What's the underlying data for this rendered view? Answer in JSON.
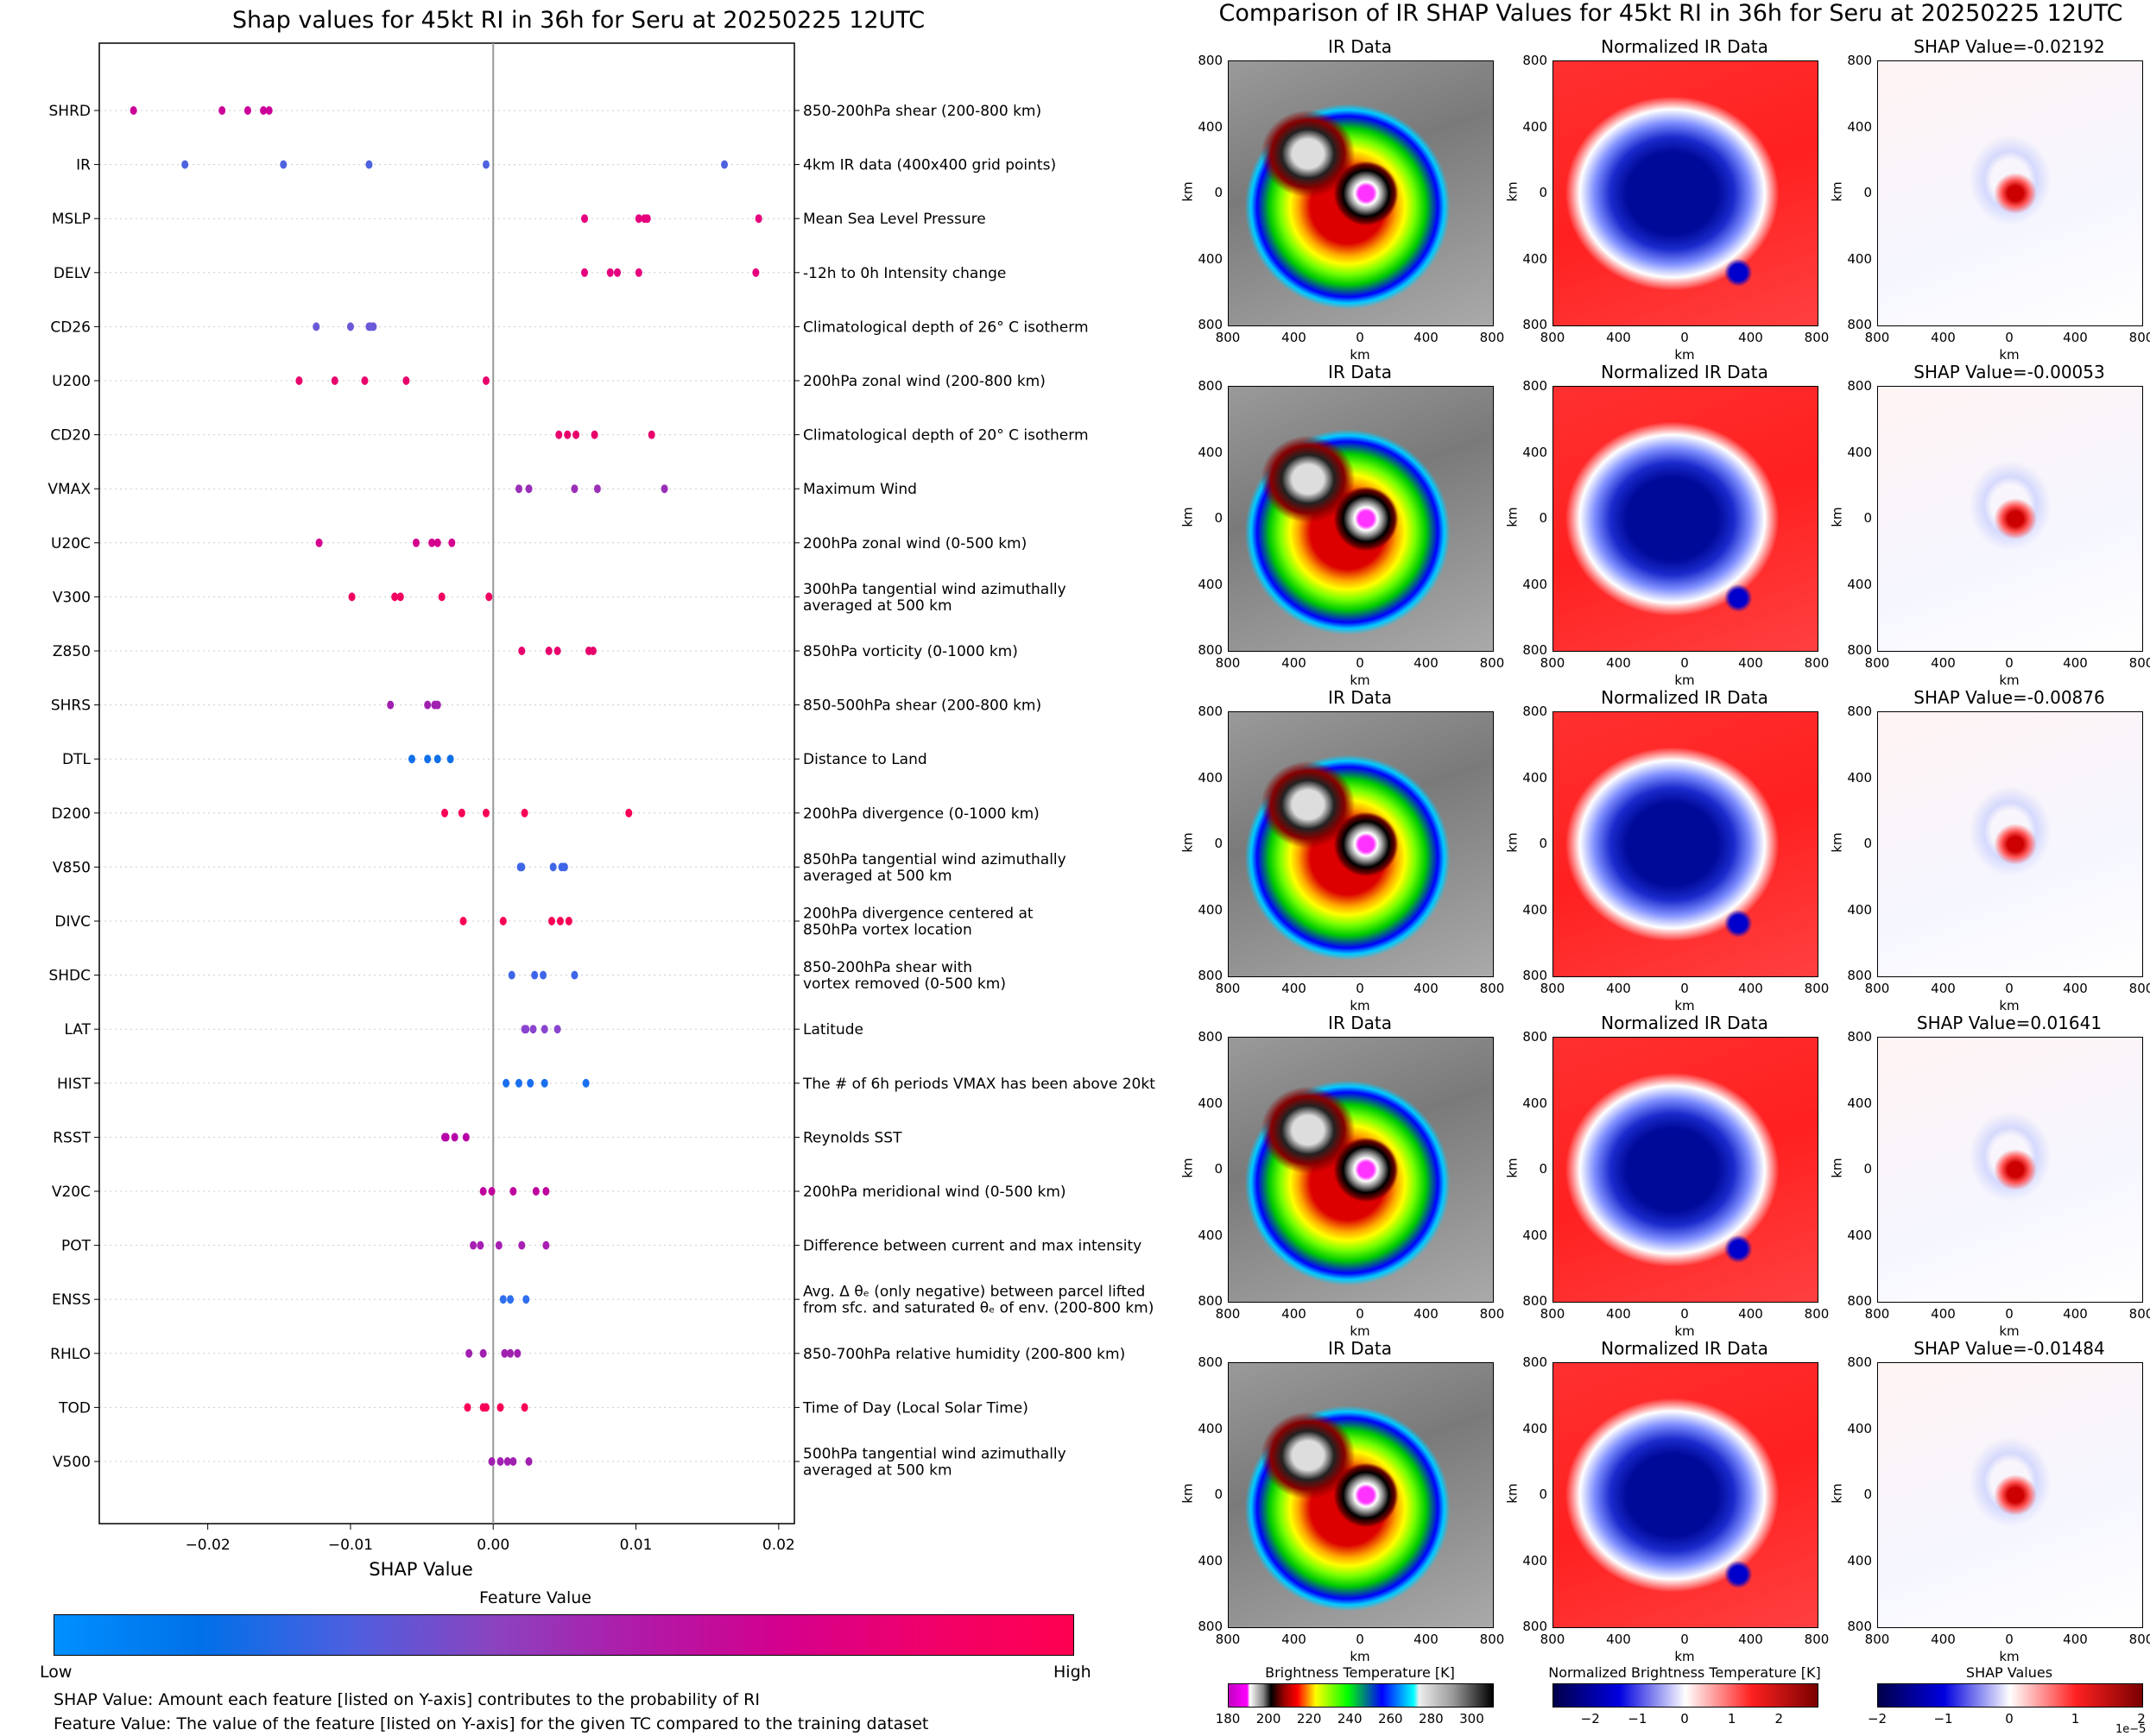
{
  "chart_data": [
    {
      "type": "scatter",
      "title": "Shap values for 45kt RI in 36h for Seru at 20250225 12UTC",
      "xlabel": "SHAP Value",
      "ylabel": "",
      "xlim": [
        -0.0276,
        0.0211
      ],
      "xticks": [
        -0.02,
        -0.01,
        0.0,
        0.01,
        0.02
      ],
      "xtick_labels": [
        "−0.02",
        "−0.01",
        "0.00",
        "0.01",
        "0.02"
      ],
      "grid": "horizontal dotted",
      "zero_line": 0.0,
      "features": [
        {
          "code": "SHRD",
          "desc": [
            "850-200hPa shear (200-800 km)"
          ],
          "color": "#cc0099",
          "values": [
            -0.0252,
            -0.019,
            -0.0172,
            -0.0161,
            -0.0157
          ]
        },
        {
          "code": "IR",
          "desc": [
            "4km IR data (400x400 grid points)"
          ],
          "color": "#4f63e0",
          "values": [
            -0.0216,
            -0.0147,
            -0.0087,
            -0.0005,
            0.0162
          ]
        },
        {
          "code": "MSLP",
          "desc": [
            "Mean Sea Level Pressure"
          ],
          "color": "#e6007e",
          "values": [
            0.0064,
            0.0102,
            0.0106,
            0.0108,
            0.0186
          ]
        },
        {
          "code": "DELV",
          "desc": [
            "-12h to 0h Intensity change"
          ],
          "color": "#e6007e",
          "values": [
            0.0064,
            0.0082,
            0.0087,
            0.0102,
            0.0184
          ]
        },
        {
          "code": "CD26",
          "desc": [
            "Climatological depth of 26° C isotherm"
          ],
          "color": "#6a5ad8",
          "values": [
            -0.0124,
            -0.01,
            -0.0087,
            -0.0086,
            -0.0084
          ]
        },
        {
          "code": "U200",
          "desc": [
            "200hPa zonal wind (200-800 km)"
          ],
          "color": "#e8006c",
          "values": [
            -0.0136,
            -0.0111,
            -0.009,
            -0.0061,
            -0.0005
          ]
        },
        {
          "code": "CD20",
          "desc": [
            "Climatological depth of 20° C isotherm"
          ],
          "color": "#e8006c",
          "values": [
            0.0046,
            0.0052,
            0.0058,
            0.0071,
            0.0111
          ]
        },
        {
          "code": "VMAX",
          "desc": [
            "Maximum Wind"
          ],
          "color": "#9a2fb8",
          "values": [
            0.0018,
            0.0025,
            0.0057,
            0.0073,
            0.012
          ]
        },
        {
          "code": "U20C",
          "desc": [
            "200hPa zonal wind (0-500 km)"
          ],
          "color": "#d4008e",
          "values": [
            -0.0122,
            -0.0054,
            -0.0043,
            -0.0039,
            -0.0029
          ]
        },
        {
          "code": "V300",
          "desc": [
            "300hPa tangential wind azimuthally",
            "averaged at 500 km"
          ],
          "color": "#f00060",
          "values": [
            -0.0099,
            -0.0069,
            -0.0065,
            -0.0036,
            -0.0003
          ]
        },
        {
          "code": "Z850",
          "desc": [
            "850hPa vorticity (0-1000 km)"
          ],
          "color": "#e8006c",
          "values": [
            0.002,
            0.0039,
            0.0045,
            0.0067,
            0.007
          ]
        },
        {
          "code": "SHRS",
          "desc": [
            "850-500hPa shear (200-800 km)"
          ],
          "color": "#a020b0",
          "values": [
            -0.0072,
            -0.0046,
            -0.0041,
            -0.0039
          ]
        },
        {
          "code": "DTL",
          "desc": [
            "Distance to Land"
          ],
          "color": "#1070e8",
          "values": [
            -0.0057,
            -0.0046,
            -0.0039,
            -0.003
          ]
        },
        {
          "code": "D200",
          "desc": [
            "200hPa divergence (0-1000 km)"
          ],
          "color": "#f80058",
          "values": [
            -0.0034,
            -0.0022,
            -0.0005,
            0.0022,
            0.0095
          ]
        },
        {
          "code": "V850",
          "desc": [
            "850hPa tangential wind azimuthally",
            "averaged at 500 km"
          ],
          "color": "#3f66e8",
          "values": [
            0.0019,
            0.002,
            0.0042,
            0.0048,
            0.005
          ]
        },
        {
          "code": "DIVC",
          "desc": [
            "200hPa divergence centered at",
            "850hPa vortex location"
          ],
          "color": "#f80058",
          "values": [
            -0.0021,
            0.0007,
            0.0041,
            0.0047,
            0.0053
          ]
        },
        {
          "code": "SHDC",
          "desc": [
            "850-200hPa shear with",
            "vortex removed (0-500 km)"
          ],
          "color": "#3f66e8",
          "values": [
            0.0013,
            0.0029,
            0.0035,
            0.0057
          ]
        },
        {
          "code": "LAT",
          "desc": [
            "Latitude"
          ],
          "color": "#8a44d0",
          "values": [
            0.0022,
            0.0023,
            0.0028,
            0.0036,
            0.0045
          ]
        },
        {
          "code": "HIST",
          "desc": [
            "The # of 6h periods VMAX has been above 20kt"
          ],
          "color": "#1a6ff0",
          "values": [
            0.0009,
            0.0018,
            0.0026,
            0.0036,
            0.0065
          ]
        },
        {
          "code": "RSST",
          "desc": [
            "Reynolds SST"
          ],
          "color": "#b800a8",
          "values": [
            -0.0034,
            -0.0033,
            -0.0027,
            -0.0019
          ]
        },
        {
          "code": "V20C",
          "desc": [
            "200hPa meridional wind (0-500 km)"
          ],
          "color": "#c0009e",
          "values": [
            -0.0007,
            -0.0001,
            0.0014,
            0.003,
            0.0037
          ]
        },
        {
          "code": "POT",
          "desc": [
            "Difference between current and max intensity"
          ],
          "color": "#a81fb4",
          "values": [
            -0.0014,
            -0.0009,
            0.0004,
            0.002,
            0.0037
          ]
        },
        {
          "code": "ENSS",
          "desc": [
            "Avg. Δ θₑ (only negative) between parcel lifted",
            "from sfc. and saturated θₑ of env. (200-800 km)"
          ],
          "color": "#2f6ff0",
          "values": [
            0.0007,
            0.0012,
            0.0023
          ]
        },
        {
          "code": "RHLO",
          "desc": [
            "850-700hPa relative humidity (200-800 km)"
          ],
          "color": "#a020b0",
          "values": [
            -0.0017,
            -0.0007,
            0.0008,
            0.0012,
            0.0017
          ]
        },
        {
          "code": "TOD",
          "desc": [
            "Time of Day (Local Solar Time)"
          ],
          "color": "#f80058",
          "values": [
            -0.0018,
            -0.0007,
            -0.0005,
            0.0005,
            0.0022
          ]
        },
        {
          "code": "V500",
          "desc": [
            "500hPa tangential wind azimuthally",
            "averaged at 500 km"
          ],
          "color": "#a020b0",
          "values": [
            -0.0001,
            0.0005,
            0.001,
            0.0014,
            0.0025
          ]
        }
      ],
      "colorbar": {
        "title": "Feature Value",
        "low_label": "Low",
        "high_label": "High",
        "colors": [
          "#0090ff",
          "#0070e8",
          "#4a60e0",
          "#8a44c0",
          "#b01aa8",
          "#d4008e",
          "#f0006a",
          "#ff0050"
        ]
      }
    },
    {
      "type": "heatmap",
      "title": "Comparison of IR SHAP Values for 45kt RI in 36h for Seru at 20250225 12UTC",
      "panel_titles": [
        "IR Data",
        "Normalized IR Data"
      ],
      "xlabel": "km",
      "ylabel": "km",
      "xticks": [
        "800",
        "400",
        "0",
        "400",
        "800"
      ],
      "yticks": [
        "800",
        "400",
        "0",
        "400",
        "800"
      ],
      "rows": [
        {
          "shap_title": "SHAP Value=-0.02192",
          "shap_value": -0.02192
        },
        {
          "shap_title": "SHAP Value=-0.00053",
          "shap_value": -0.00053
        },
        {
          "shap_title": "SHAP Value=-0.00876",
          "shap_value": -0.00876
        },
        {
          "shap_title": "SHAP Value=0.01641",
          "shap_value": 0.01641
        },
        {
          "shap_title": "SHAP Value=-0.01484",
          "shap_value": -0.01484
        }
      ],
      "colorbars": [
        {
          "title": "Brightness Temperature [K]",
          "ticks": [
            "180",
            "200",
            "220",
            "240",
            "260",
            "280",
            "300"
          ],
          "range": [
            180,
            310
          ]
        },
        {
          "title": "Normalized Brightness Temperature [K]",
          "ticks": [
            "−2",
            "−1",
            "0",
            "1",
            "2"
          ],
          "range": [
            -2.8,
            2.8
          ]
        },
        {
          "title": "SHAP Values",
          "ticks": [
            "−2",
            "−1",
            "0",
            "1",
            "2"
          ],
          "range": [
            -2,
            2
          ],
          "offset_label": "1e−5"
        }
      ]
    }
  ],
  "notes": [
    "SHAP Value: Amount each feature [listed on Y-axis] contributes to the probability of RI",
    "Feature Value: The value of the feature [listed on Y-axis] for the given TC compared to the training dataset"
  ]
}
